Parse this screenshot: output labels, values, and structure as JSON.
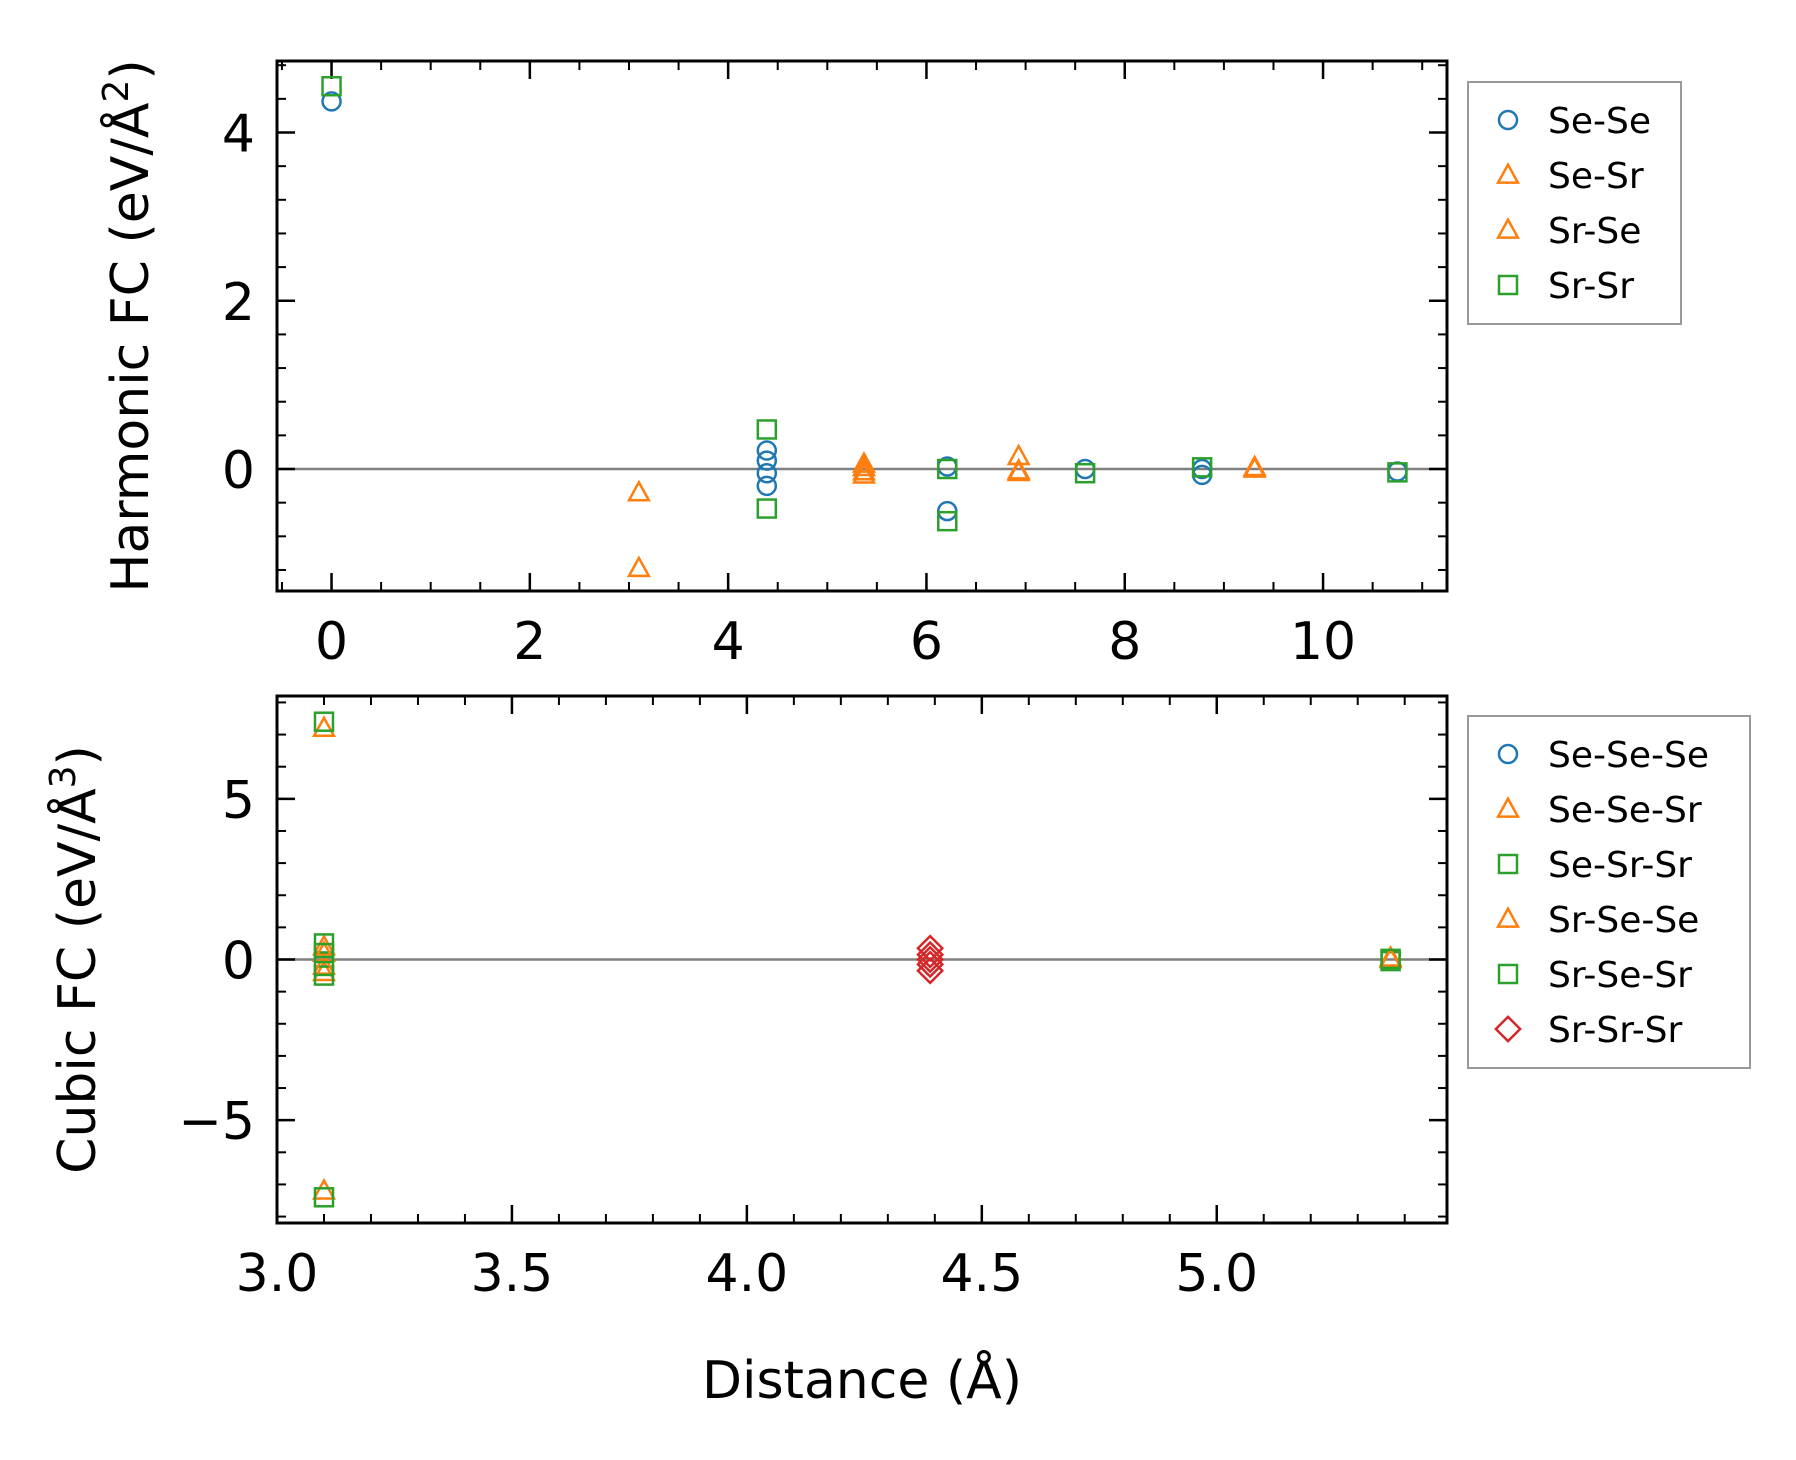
{
  "chart_data": [
    {
      "type": "scatter",
      "panel": "top",
      "ylabel_main": "Harmonic FC (eV/Å",
      "ylabel_sup": "2",
      "ylabel_close": ")",
      "xlabel": "",
      "xlim": [
        -0.55,
        11.25
      ],
      "ylim": [
        -1.45,
        4.85
      ],
      "xticks": [
        0,
        2,
        4,
        6,
        8,
        10
      ],
      "xtick_labels": [
        "0",
        "2",
        "4",
        "6",
        "8",
        "10"
      ],
      "xminor_step": 0.5,
      "yticks": [
        0,
        2,
        4
      ],
      "ytick_labels": [
        "0",
        "2",
        "4"
      ],
      "yminor_step": 0.4,
      "zero_line": true,
      "series": [
        {
          "name": "Se-Se",
          "marker": "circle",
          "color": "#1f77b4",
          "points": [
            [
              0,
              4.37
            ],
            [
              4.39,
              0.22
            ],
            [
              4.39,
              0.1
            ],
            [
              4.39,
              -0.05
            ],
            [
              4.39,
              -0.2
            ],
            [
              6.21,
              0.03
            ],
            [
              6.21,
              -0.5
            ],
            [
              7.6,
              0.0
            ],
            [
              8.78,
              0.0
            ],
            [
              8.78,
              -0.07
            ],
            [
              10.75,
              -0.03
            ]
          ]
        },
        {
          "name": "Se-Sr",
          "marker": "triangle",
          "color": "#ff7f0e",
          "points": [
            [
              3.1,
              -0.28
            ],
            [
              3.1,
              -1.18
            ],
            [
              5.37,
              0.06
            ],
            [
              5.37,
              -0.03
            ],
            [
              5.37,
              -0.07
            ],
            [
              6.93,
              0.15
            ],
            [
              6.93,
              -0.04
            ],
            [
              9.31,
              0.0
            ]
          ]
        },
        {
          "name": "Sr-Se",
          "marker": "triangle",
          "color": "#ff7f0e",
          "points": [
            [
              5.37,
              0.02
            ],
            [
              6.93,
              -0.02
            ],
            [
              9.31,
              0.02
            ]
          ]
        },
        {
          "name": "Sr-Sr",
          "marker": "square",
          "color": "#2ca02c",
          "points": [
            [
              0,
              4.55
            ],
            [
              4.39,
              0.47
            ],
            [
              4.39,
              -0.47
            ],
            [
              6.21,
              0.0
            ],
            [
              6.21,
              -0.62
            ],
            [
              7.6,
              -0.05
            ],
            [
              8.78,
              0.02
            ],
            [
              10.75,
              -0.04
            ]
          ]
        }
      ]
    },
    {
      "type": "scatter",
      "panel": "bottom",
      "ylabel_main": "Cubic FC (eV/Å",
      "ylabel_sup": "3",
      "ylabel_close": ")",
      "xlabel": "Distance (Å)",
      "xlim": [
        3.0,
        5.49
      ],
      "ylim": [
        -8.2,
        8.2
      ],
      "xticks": [
        3.0,
        3.5,
        4.0,
        4.5,
        5.0
      ],
      "xtick_labels": [
        "3.0",
        "3.5",
        "4.0",
        "4.5",
        "5.0"
      ],
      "xminor_step": 0.1,
      "yticks": [
        -5,
        0,
        5
      ],
      "ytick_labels": [
        "−5",
        "0",
        "5"
      ],
      "yminor_step": 1,
      "zero_line": true,
      "series": [
        {
          "name": "Se-Se-Se",
          "marker": "circle",
          "color": "#1f77b4",
          "points": []
        },
        {
          "name": "Se-Se-Sr",
          "marker": "triangle",
          "color": "#ff7f0e",
          "points": [
            [
              3.1,
              7.2
            ],
            [
              3.1,
              0.4
            ],
            [
              3.1,
              -0.4
            ],
            [
              3.1,
              -7.2
            ],
            [
              5.37,
              0.05
            ]
          ]
        },
        {
          "name": "Se-Sr-Sr",
          "marker": "square",
          "color": "#2ca02c",
          "points": [
            [
              3.1,
              7.4
            ],
            [
              3.1,
              0.5
            ],
            [
              3.1,
              -0.5
            ],
            [
              3.1,
              -7.4
            ],
            [
              5.37,
              -0.05
            ]
          ]
        },
        {
          "name": "Sr-Se-Se",
          "marker": "triangle",
          "color": "#ff7f0e",
          "points": [
            [
              3.1,
              0.2
            ],
            [
              3.1,
              -0.2
            ],
            [
              5.37,
              0.0
            ]
          ]
        },
        {
          "name": "Sr-Se-Sr",
          "marker": "square",
          "color": "#2ca02c",
          "points": [
            [
              3.1,
              0.2
            ],
            [
              3.1,
              -0.2
            ],
            [
              5.37,
              0.02
            ]
          ]
        },
        {
          "name": "Sr-Sr-Sr",
          "marker": "diamond",
          "color": "#d62728",
          "points": [
            [
              4.39,
              0.35
            ],
            [
              4.39,
              0.15
            ],
            [
              4.39,
              0.0
            ],
            [
              4.39,
              -0.15
            ],
            [
              4.39,
              -0.35
            ]
          ]
        }
      ]
    }
  ]
}
